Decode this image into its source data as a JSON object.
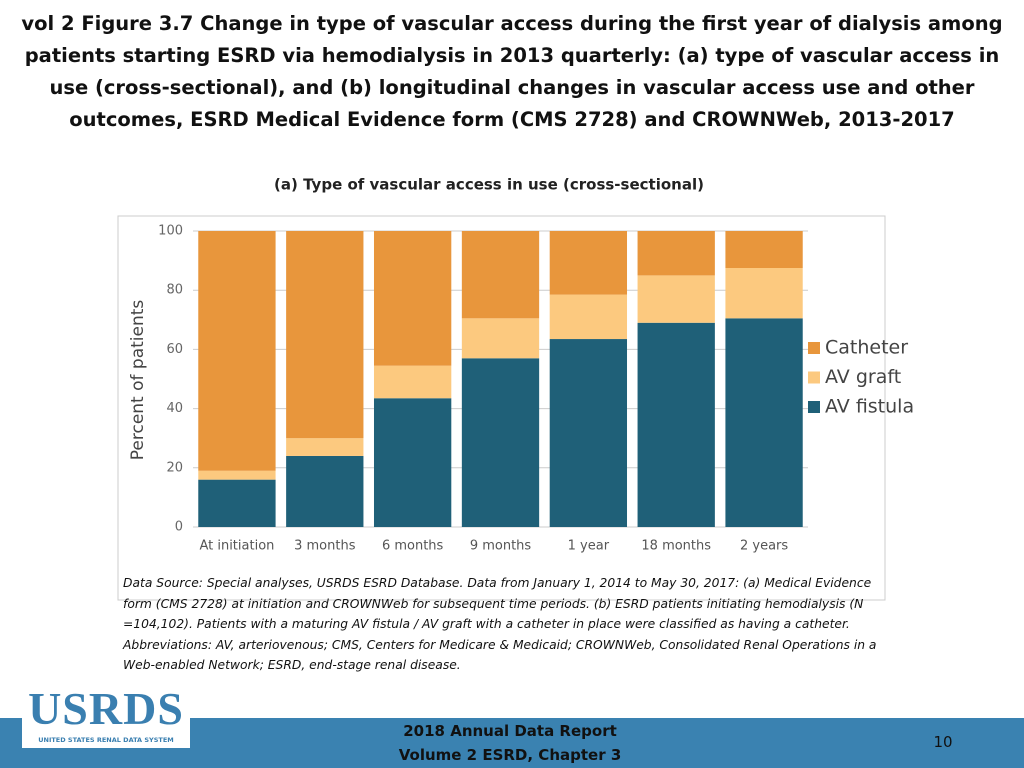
{
  "header": {
    "title": "vol 2 Figure 3.7 Change in type of vascular access during the first year of dialysis among patients starting ESRD via hemodialysis in 2013 quarterly: (a) type of vascular access in use (cross-sectional), and (b) longitudinal changes in vascular access use and other outcomes, ESRD Medical Evidence form (CMS 2728) and CROWNWeb, 2013-2017"
  },
  "chart_data": {
    "type": "bar",
    "stacked": true,
    "title": "(a) Type of vascular access in use (cross-sectional)",
    "y_label": "Percent of patients",
    "categories": [
      "At initiation",
      "3 months",
      "6 months",
      "9 months",
      "1 year",
      "18 months",
      "2 years"
    ],
    "series": [
      {
        "name": "AV fistula",
        "color": "#1f6078",
        "values": [
          16,
          24,
          43.5,
          57,
          63.5,
          69,
          70.5
        ]
      },
      {
        "name": "AV graft",
        "color": "#fcc97f",
        "values": [
          3,
          6,
          11,
          13.5,
          15,
          16,
          17
        ]
      },
      {
        "name": "Catheter",
        "color": "#e8963c",
        "values": [
          81,
          70,
          45.5,
          29.5,
          21.5,
          15,
          12.5
        ]
      }
    ],
    "ylim": [
      0,
      100
    ],
    "yticks": [
      0,
      20,
      40,
      60,
      80,
      100
    ],
    "grid": true,
    "legend": "right"
  },
  "note": "Data Source: Special analyses, USRDS ESRD Database. Data from January 1, 2014 to May 30, 2017: (a) Medical Evidence form (CMS 2728) at initiation and CROWNWeb for subsequent time periods. (b) ESRD patients initiating hemodialysis (N =104,102). Patients with a maturing AV fistula / AV graft with a catheter in place were classified as having a catheter. Abbreviations: AV, arteriovenous; CMS, Centers for Medicare & Medicaid; CROWNWeb, Consolidated Renal Operations in a Web-enabled Network; ESRD, end-stage renal disease.",
  "footer": {
    "logo": "USRDS",
    "logo_subtitle": "UNITED STATES RENAL DATA SYSTEM",
    "report": "2018 Annual Data Report",
    "chapter": "Volume 2 ESRD, Chapter 3",
    "page": "10"
  }
}
